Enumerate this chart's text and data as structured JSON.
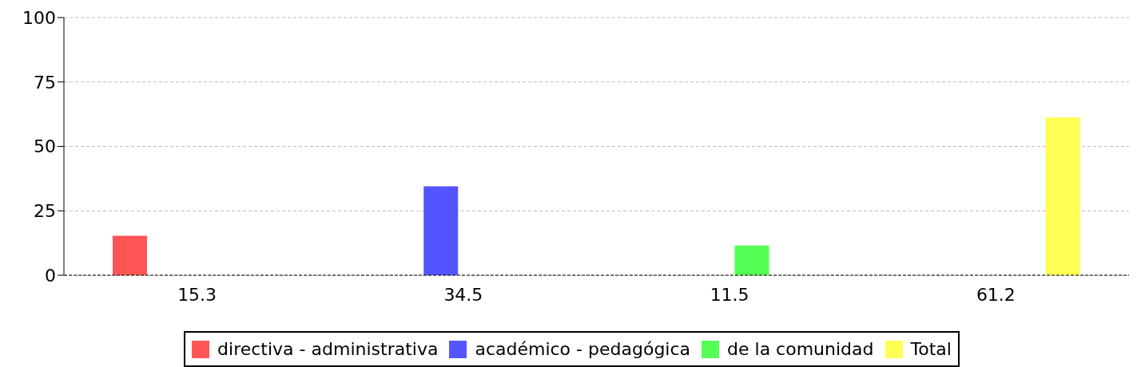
{
  "chart_data": {
    "type": "bar",
    "categories": [
      "15.3",
      "34.5",
      "11.5",
      "61.2"
    ],
    "series": [
      {
        "name": "directiva - administrativa",
        "color": "#ff5555",
        "values": [
          15.3,
          null,
          null,
          null
        ]
      },
      {
        "name": "académico - pedagógica",
        "color": "#5555ff",
        "values": [
          null,
          34.5,
          null,
          null
        ]
      },
      {
        "name": "de la comunidad",
        "color": "#55ff55",
        "values": [
          null,
          null,
          11.5,
          null
        ]
      },
      {
        "name": "Total",
        "color": "#ffff55",
        "values": [
          null,
          null,
          null,
          61.2
        ]
      }
    ],
    "ylim": [
      0,
      100
    ],
    "yticks": [
      0,
      25,
      50,
      75,
      100
    ],
    "grid": "y",
    "legend": "bottom"
  }
}
